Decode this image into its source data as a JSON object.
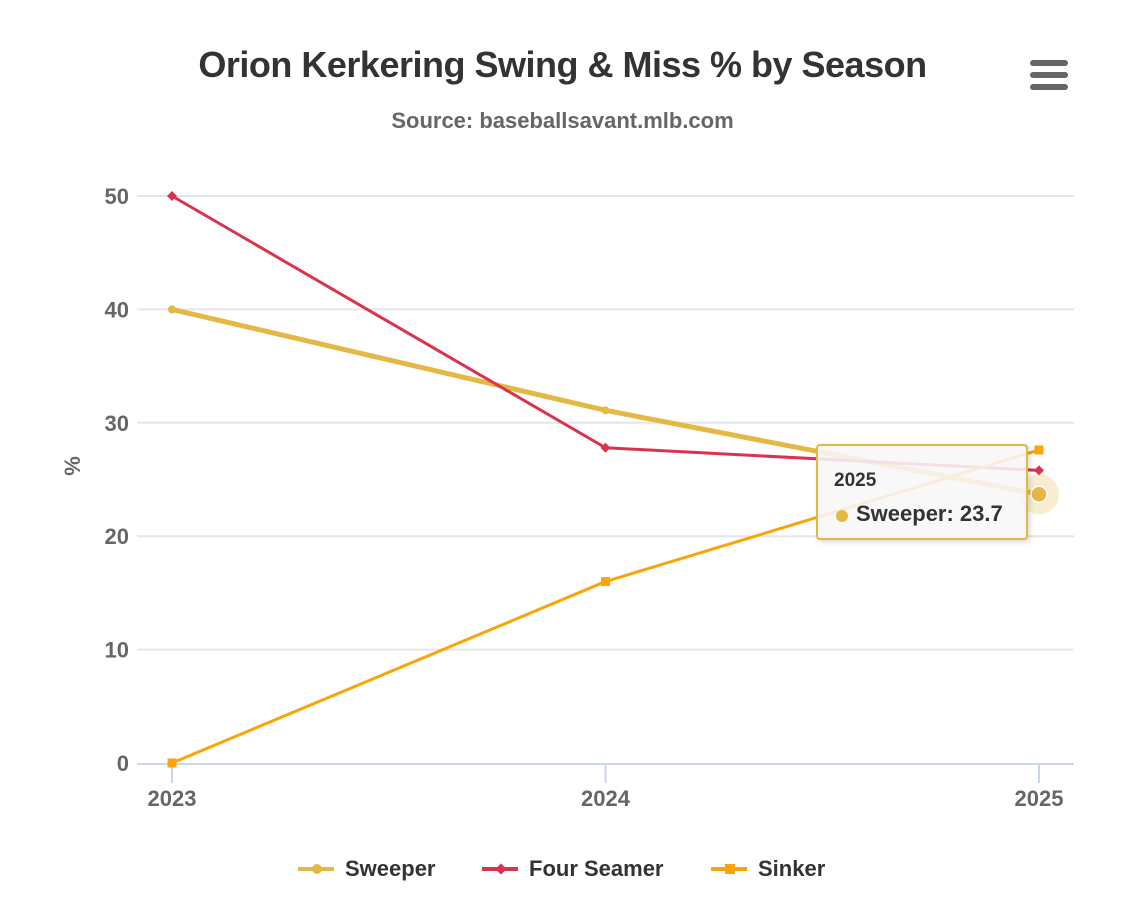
{
  "title": "Orion Kerkering Swing & Miss % by Season",
  "subtitle": "Source: baseballsavant.mlb.com",
  "menu": {
    "icon": "hamburger-menu-icon"
  },
  "chart_data": {
    "type": "line",
    "title": "Orion Kerkering Swing & Miss % by Season",
    "subtitle": "Source: baseballsavant.mlb.com",
    "xlabel": "",
    "ylabel": "%",
    "categories": [
      "2023",
      "2024",
      "2025"
    ],
    "yticks": [
      "0",
      "10",
      "20",
      "30",
      "40",
      "50"
    ],
    "ylim": [
      0,
      50
    ],
    "grid": true,
    "legend_position": "bottom-center",
    "series": [
      {
        "name": "Sweeper",
        "values": [
          40.0,
          31.1,
          23.7
        ],
        "color": "#e4b845",
        "marker": "circle"
      },
      {
        "name": "Four Seamer",
        "values": [
          50.0,
          27.8,
          25.8
        ],
        "color": "#d9334f",
        "marker": "diamond"
      },
      {
        "name": "Sinker",
        "values": [
          0.0,
          16.0,
          27.6
        ],
        "color": "#f9a509",
        "marker": "square"
      }
    ]
  },
  "tooltip": {
    "header": "2025",
    "text": "Sweeper: 23.7",
    "series": "Sweeper",
    "category": "2025",
    "value": 23.7
  }
}
